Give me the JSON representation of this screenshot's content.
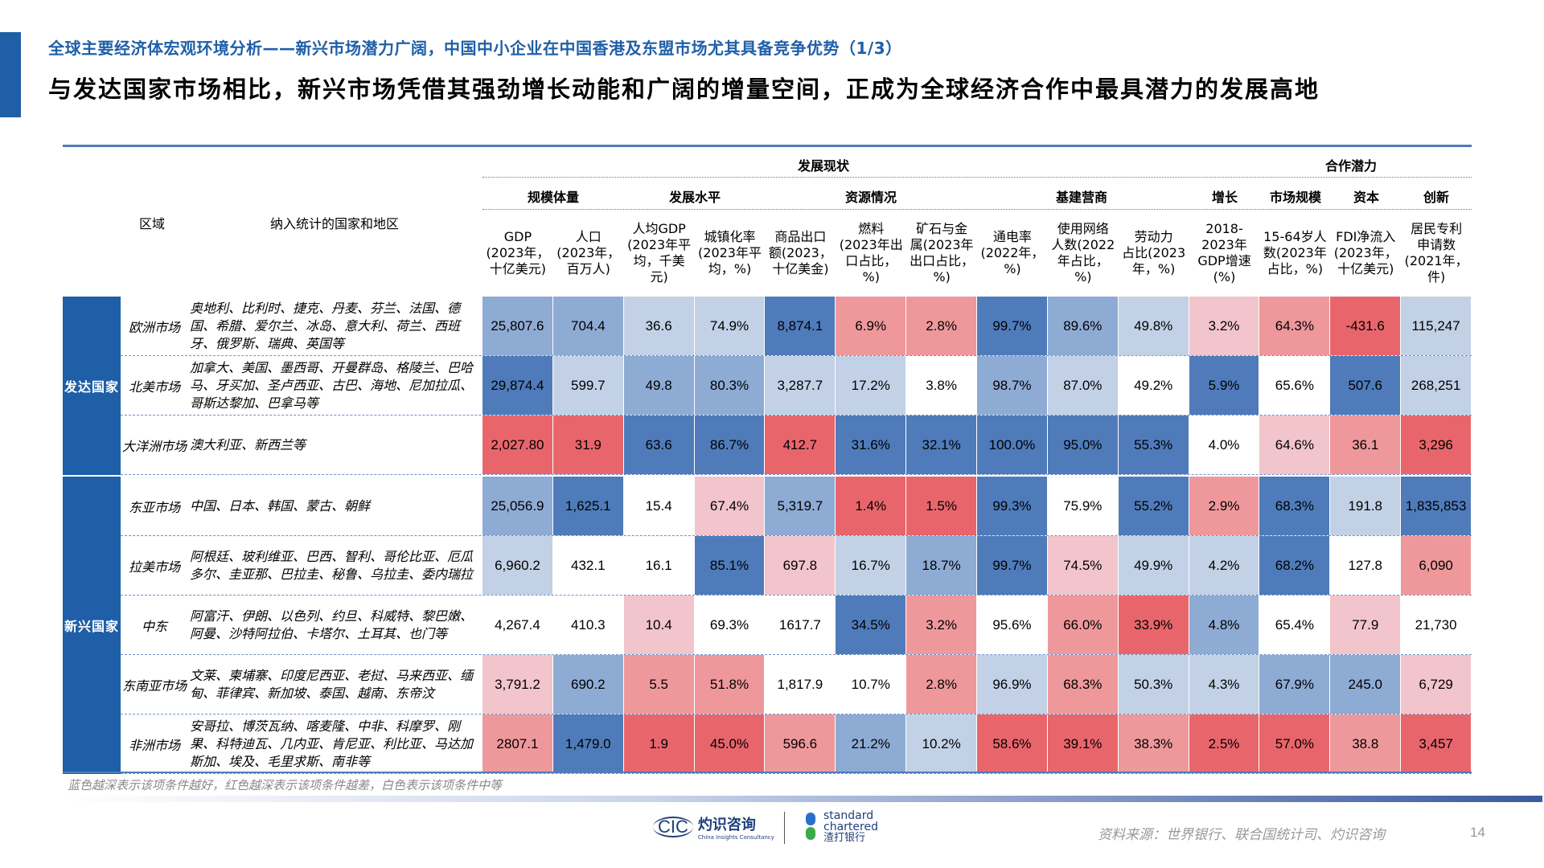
{
  "header": {
    "subtitle": "全球主要经济体宏观环境分析——新兴市场潜力广阔，中国中小企业在中国香港及东盟市场尤其具备竞争优势（1/3）",
    "headline": "与发达国家市场相比，新兴市场凭借其强劲增长动能和广阔的增量空间，正成为全球经济合作中最具潜力的发展高地"
  },
  "table": {
    "left_headers": {
      "region": "区域",
      "countries": "纳入统计的国家和地区"
    },
    "groups": [
      {
        "label": "发展现状"
      },
      {
        "label": "合作潜力"
      }
    ],
    "subgroups": [
      {
        "label": "规模体量"
      },
      {
        "label": "发展水平"
      },
      {
        "label": "资源情况"
      },
      {
        "label": "基建营商"
      },
      {
        "label": "增长"
      },
      {
        "label": "市场规模"
      },
      {
        "label": "资本"
      },
      {
        "label": "创新"
      }
    ],
    "columns": [
      "GDP\n(2023年，\n十亿美元)",
      "人口\n(2023年，\n百万人)",
      "人均GDP\n(2023年平\n均，千美\n元)",
      "城镇化率\n(2023年平\n均，%)",
      "商品出口\n额(2023，\n十亿美金)",
      "燃料\n(2023年出\n口占比，\n%)",
      "矿石与金\n属(2023年\n出口占比，\n%)",
      "通电率\n(2022年，\n%)",
      "使用网络\n人数(2022\n年占比，\n%)",
      "劳动力\n占比(2023\n年，%)",
      "2018-\n2023年\nGDP增速\n(%)",
      "15-64岁人\n数(2023年\n占比，%)",
      "FDI净流入\n(2023年，\n十亿美元)",
      "居民专利\n申请数\n(2021年，\n件)"
    ],
    "region_groups": [
      {
        "label": "发达国家"
      },
      {
        "label": "新兴国家"
      }
    ],
    "rows": [
      {
        "market": "欧洲市场",
        "countries": "奥地利、比利时、捷克、丹麦、芬兰、法国、德国、希腊、爱尔兰、冰岛、意大利、荷兰、西班牙、俄罗斯、瑞典、英国等",
        "values": [
          "25,807.6",
          "704.4",
          "36.6",
          "74.9%",
          "8,874.1",
          "6.9%",
          "2.8%",
          "99.7%",
          "89.6%",
          "49.8%",
          "3.2%",
          "64.3%",
          "-431.6",
          "115,247"
        ],
        "levels": [
          "b2",
          "b2",
          "b1",
          "b1",
          "b3",
          "r2",
          "r2",
          "b3",
          "b2",
          "b1",
          "r1",
          "r2",
          "r3",
          "b1"
        ]
      },
      {
        "market": "北美市场",
        "countries": "加拿大、美国、墨西哥、开曼群岛、格陵兰、巴哈马、牙买加、圣卢西亚、古巴、海地、尼加拉瓜、哥斯达黎加、巴拿马等",
        "values": [
          "29,874.4",
          "599.7",
          "49.8",
          "80.3%",
          "3,287.7",
          "17.2%",
          "3.8%",
          "98.7%",
          "87.0%",
          "49.2%",
          "5.9%",
          "65.6%",
          "507.6",
          "268,251"
        ],
        "levels": [
          "b3",
          "b1",
          "b2",
          "b2",
          "b1",
          "b1",
          "w",
          "b2",
          "b1",
          "w",
          "b3",
          "w",
          "b3",
          "b1"
        ]
      },
      {
        "market": "大洋洲市场",
        "countries": "澳大利亚、新西兰等",
        "values": [
          "2,027.80",
          "31.9",
          "63.6",
          "86.7%",
          "412.7",
          "31.6%",
          "32.1%",
          "100.0%",
          "95.0%",
          "55.3%",
          "4.0%",
          "64.6%",
          "36.1",
          "3,296"
        ],
        "levels": [
          "r3",
          "r3",
          "b3",
          "b3",
          "r3",
          "b3",
          "b3",
          "b3",
          "b3",
          "b3",
          "w",
          "r1",
          "r2",
          "r3"
        ]
      },
      {
        "market": "东亚市场",
        "countries": "中国、日本、韩国、蒙古、朝鲜",
        "values": [
          "25,056.9",
          "1,625.1",
          "15.4",
          "67.4%",
          "5,319.7",
          "1.4%",
          "1.5%",
          "99.3%",
          "75.9%",
          "55.2%",
          "2.9%",
          "68.3%",
          "191.8",
          "1,835,853"
        ],
        "levels": [
          "b2",
          "b3",
          "w",
          "r1",
          "b2",
          "r3",
          "r3",
          "b3",
          "w",
          "b3",
          "r2",
          "b3",
          "b1",
          "b3"
        ]
      },
      {
        "market": "拉美市场",
        "countries": "阿根廷、玻利维亚、巴西、智利、哥伦比亚、厄瓜多尔、圭亚那、巴拉圭、秘鲁、乌拉圭、委内瑞拉",
        "values": [
          "6,960.2",
          "432.1",
          "16.1",
          "85.1%",
          "697.8",
          "16.7%",
          "18.7%",
          "99.7%",
          "74.5%",
          "49.9%",
          "4.2%",
          "68.2%",
          "127.8",
          "6,090"
        ],
        "levels": [
          "b1",
          "w",
          "w",
          "b3",
          "r1",
          "b1",
          "b2",
          "b3",
          "r1",
          "b1",
          "b1",
          "b3",
          "w",
          "r2"
        ]
      },
      {
        "market": "中东",
        "countries": "阿富汗、伊朗、以色列、约旦、科威特、黎巴嫩、阿曼、沙特阿拉伯、卡塔尔、土耳其、也门等",
        "values": [
          "4,267.4",
          "410.3",
          "10.4",
          "69.3%",
          "1617.7",
          "34.5%",
          "3.2%",
          "95.6%",
          "66.0%",
          "33.9%",
          "4.8%",
          "65.4%",
          "77.9",
          "21,730"
        ],
        "levels": [
          "w",
          "w",
          "r1",
          "w",
          "w",
          "b3",
          "r2",
          "w",
          "r2",
          "r3",
          "b2",
          "w",
          "r1",
          "w"
        ]
      },
      {
        "market": "东南亚市场",
        "countries": "文莱、柬埔寨、印度尼西亚、老挝、马来西亚、缅甸、菲律宾、新加坡、泰国、越南、东帝汶",
        "values": [
          "3,791.2",
          "690.2",
          "5.5",
          "51.8%",
          "1,817.9",
          "10.7%",
          "2.8%",
          "96.9%",
          "68.3%",
          "50.3%",
          "4.3%",
          "67.9%",
          "245.0",
          "6,729"
        ],
        "levels": [
          "r1",
          "b2",
          "r2",
          "r2",
          "w",
          "w",
          "r2",
          "b1",
          "r2",
          "b1",
          "b1",
          "b2",
          "b2",
          "r1"
        ]
      },
      {
        "market": "非洲市场",
        "countries": "安哥拉、博茨瓦纳、喀麦隆、中非、科摩罗、刚果、科特迪瓦、几内亚、肯尼亚、利比亚、马达加斯加、埃及、毛里求斯、南非等",
        "values": [
          "2807.1",
          "1,479.0",
          "1.9",
          "45.0%",
          "596.6",
          "21.2%",
          "10.2%",
          "58.6%",
          "39.1%",
          "38.3%",
          "2.5%",
          "57.0%",
          "38.8",
          "3,457"
        ],
        "levels": [
          "r2",
          "b3",
          "r3",
          "r3",
          "r2",
          "b2",
          "b1",
          "r3",
          "r3",
          "r2",
          "r3",
          "r3",
          "r2",
          "r3"
        ]
      }
    ]
  },
  "footer": {
    "note": "蓝色越深表示该项条件越好，红色越深表示该项条件越差，白色表示该项条件中等",
    "cic_logo": {
      "mark": "CIC",
      "name_cn": "灼识咨询",
      "name_en": "China Insights Consultancy"
    },
    "sc_logo": {
      "line1": "standard",
      "line2": "chartered",
      "name_cn": "渣打银行"
    },
    "source": "资料来源：世界银行、联合国统计司、灼识咨询",
    "page_number": "14"
  },
  "colors": {
    "accent": "#1F5FA8",
    "blue_dark": "#4F7BBA",
    "blue_mid": "#8EABD4",
    "blue_light": "#C2D1E6",
    "white": "#FFFFFF",
    "red_light": "#F2C4CB",
    "red_mid": "#EE989C",
    "red_dark": "#E8666B"
  }
}
